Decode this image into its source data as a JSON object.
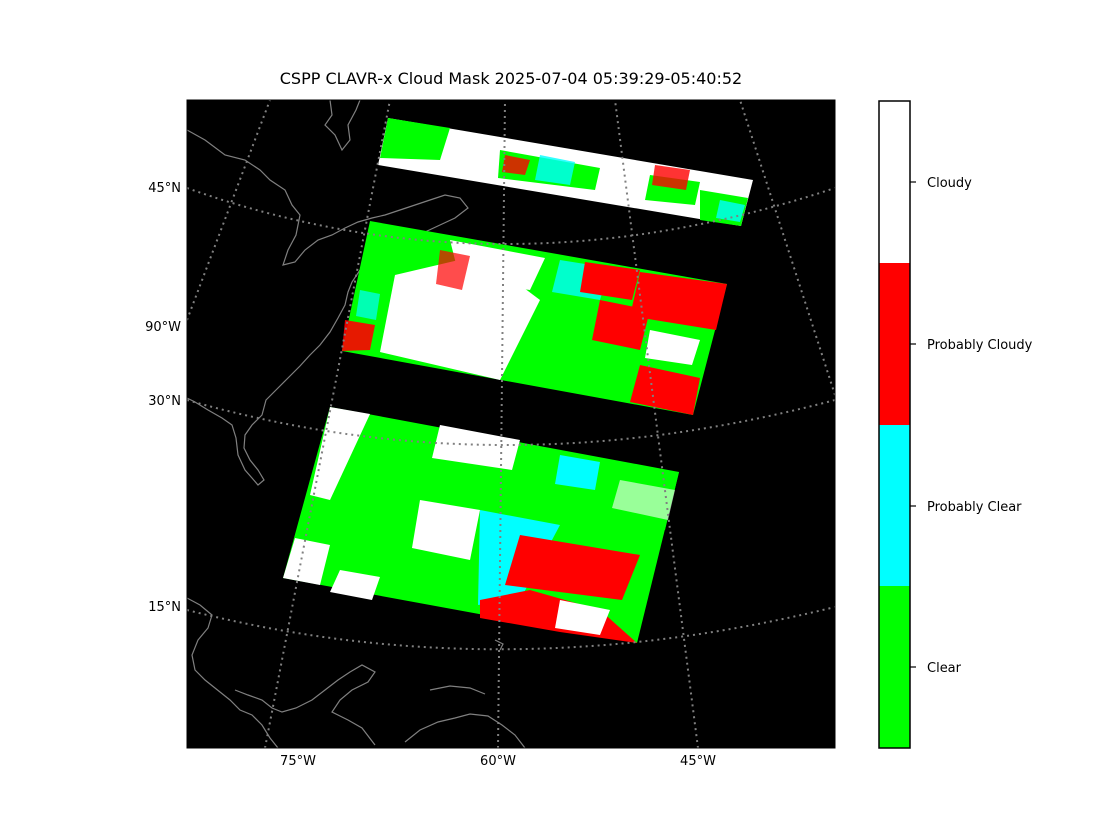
{
  "title": "CSPP CLAVR-x Cloud Mask 2025-07-04 05:39:29-05:40:52",
  "map": {
    "projection": "conic",
    "background_color": "#000000",
    "coastline_color": "#808080",
    "graticule_style": "dotted",
    "lat_labels": [
      "45°N",
      "90°W",
      "30°N",
      "15°N"
    ],
    "lon_labels": [
      "75°W",
      "60°W",
      "45°W"
    ],
    "overlay": "satellite swath cloud mask (3 granules)"
  },
  "colorbar": {
    "classes": [
      {
        "label": "Cloudy",
        "color": "#ffffff"
      },
      {
        "label": "Probably Cloudy",
        "color": "#ff0000"
      },
      {
        "label": "Probably Clear",
        "color": "#00ffff"
      },
      {
        "label": "Clear",
        "color": "#00ff00"
      }
    ]
  }
}
